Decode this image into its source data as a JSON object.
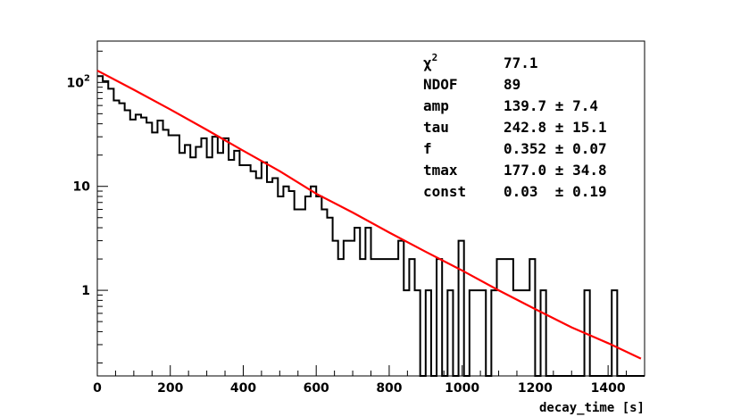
{
  "chart_data": {
    "type": "line",
    "title": "",
    "xlabel": "decay_time [s]",
    "ylabel": "",
    "xlim": [
      0,
      1500
    ],
    "ylim": [
      0.15,
      250
    ],
    "yscale": "log",
    "grid": false,
    "x_ticks": [
      "0",
      "200",
      "400",
      "600",
      "800",
      "1000",
      "1200",
      "1400"
    ],
    "y_ticks": [
      {
        "label": "1",
        "value": 1
      },
      {
        "label": "10",
        "value": 10
      },
      {
        "label": "10",
        "exponent": "2",
        "value": 100
      }
    ],
    "histogram": {
      "bin_width": 15,
      "counts": [
        115,
        103,
        87,
        67,
        63,
        54,
        44,
        49,
        46,
        41,
        33,
        43,
        35,
        31,
        31,
        21,
        25,
        19,
        24,
        29,
        19,
        30,
        21,
        29,
        18,
        22,
        16,
        16,
        14,
        12,
        17,
        11,
        12,
        8,
        10,
        9,
        6,
        6,
        8,
        10,
        8,
        6,
        5,
        3,
        2,
        3,
        3,
        4,
        2,
        4,
        2,
        2,
        2,
        2,
        2,
        3,
        1,
        2,
        1,
        0,
        1,
        0,
        2,
        0,
        1,
        0,
        3,
        0,
        1,
        1,
        1,
        0,
        1,
        2,
        2,
        2,
        1,
        1,
        1,
        2,
        0,
        1,
        0,
        0,
        0,
        0,
        0,
        0,
        0,
        1,
        0,
        0,
        0,
        0,
        1,
        0,
        0,
        0,
        0,
        0
      ],
      "color": "#000000"
    },
    "fit": {
      "name": "fit",
      "color": "#ff0000",
      "x": [
        0,
        100,
        200,
        300,
        400,
        500,
        600,
        700,
        800,
        900,
        1000,
        1100,
        1200,
        1300,
        1400,
        1490
      ],
      "y": [
        130,
        85,
        55,
        35,
        22,
        14,
        8.5,
        5.6,
        3.6,
        2.35,
        1.55,
        1.0,
        0.66,
        0.44,
        0.31,
        0.22
      ]
    },
    "stats": [
      {
        "name": "χ",
        "sup": "2",
        "value": "77.1"
      },
      {
        "name": "NDOF",
        "value": "89"
      },
      {
        "name": "amp",
        "value": "139.7 ± 7.4"
      },
      {
        "name": "tau",
        "value": "242.8 ± 15.1"
      },
      {
        "name": "f",
        "value": "0.352 ± 0.07"
      },
      {
        "name": "tmax",
        "value": "177.0 ± 34.8"
      },
      {
        "name": "const",
        "value": "0.03  ± 0.19"
      }
    ]
  }
}
